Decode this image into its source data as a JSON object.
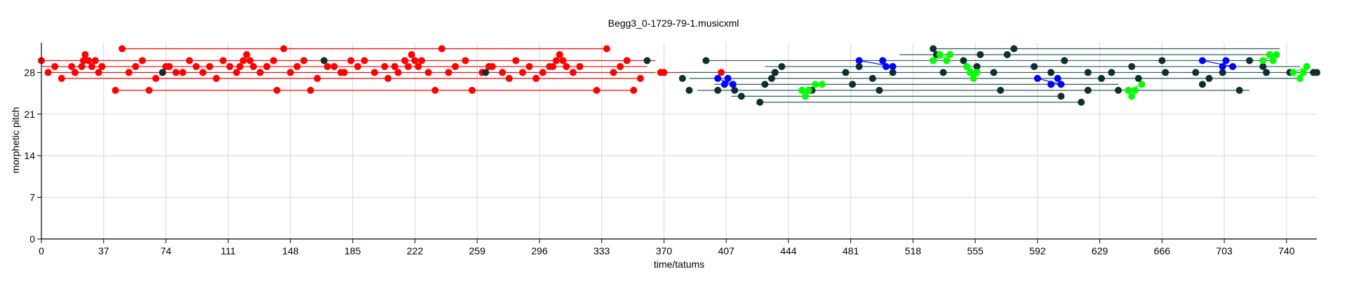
{
  "chart_data": {
    "type": "scatter",
    "title": "Begg3_0-1729-79-1.musicxml",
    "xlabel": "time/tatums",
    "ylabel": "morphetic pitch",
    "xlim": [
      0,
      758
    ],
    "ylim": [
      0,
      33
    ],
    "xticks": [
      0,
      37,
      74,
      111,
      148,
      185,
      222,
      259,
      296,
      333,
      370,
      407,
      444,
      481,
      518,
      555,
      592,
      629,
      666,
      703,
      740
    ],
    "yticks": [
      0,
      7,
      14,
      21,
      28
    ],
    "grid": true,
    "colors": {
      "red": "#ff0000",
      "dark": "#0f2f2f",
      "blue": "#0000ff",
      "green": "#00ff00",
      "line_dark": "#2e5a5a"
    },
    "red_lines": [
      {
        "x1": 48,
        "x2": 336,
        "y": 32
      },
      {
        "x1": 0,
        "x2": 365,
        "y": 30
      },
      {
        "x1": 0,
        "x2": 360,
        "y": 29
      },
      {
        "x1": 5,
        "x2": 365,
        "y": 28
      },
      {
        "x1": 370,
        "x2": 436,
        "y": 28
      },
      {
        "x1": 12,
        "x2": 356,
        "y": 27
      },
      {
        "x1": 44,
        "x2": 354,
        "y": 25
      }
    ],
    "dark_lines": [
      {
        "x1": 530,
        "x2": 736,
        "y": 32
      },
      {
        "x1": 510,
        "x2": 732,
        "y": 31
      },
      {
        "x1": 395,
        "x2": 730,
        "y": 30
      },
      {
        "x1": 430,
        "x2": 748,
        "y": 29
      },
      {
        "x1": 380,
        "x2": 758,
        "y": 28
      },
      {
        "x1": 385,
        "x2": 746,
        "y": 27
      },
      {
        "x1": 400,
        "x2": 640,
        "y": 26
      },
      {
        "x1": 390,
        "x2": 718,
        "y": 25
      },
      {
        "x1": 410,
        "x2": 606,
        "y": 24
      },
      {
        "x1": 427,
        "x2": 618,
        "y": 23
      }
    ],
    "series": [
      {
        "color": "red",
        "points": [
          [
            0,
            30
          ],
          [
            4,
            28
          ],
          [
            8,
            29
          ],
          [
            12,
            27
          ],
          [
            18,
            29
          ],
          [
            20,
            28
          ],
          [
            24,
            29
          ],
          [
            25,
            30
          ],
          [
            26,
            31
          ],
          [
            28,
            30
          ],
          [
            30,
            29
          ],
          [
            32,
            30
          ],
          [
            34,
            28
          ],
          [
            36,
            29
          ],
          [
            44,
            25
          ],
          [
            48,
            32
          ],
          [
            52,
            28
          ],
          [
            56,
            29
          ],
          [
            60,
            30
          ],
          [
            64,
            25
          ],
          [
            68,
            27
          ],
          [
            72,
            28
          ],
          [
            74,
            29
          ],
          [
            76,
            29
          ],
          [
            80,
            28
          ],
          [
            84,
            28
          ],
          [
            88,
            30
          ],
          [
            92,
            29
          ],
          [
            96,
            28
          ],
          [
            100,
            29
          ],
          [
            104,
            27
          ],
          [
            108,
            30
          ],
          [
            112,
            29
          ],
          [
            116,
            28
          ],
          [
            118,
            29
          ],
          [
            120,
            30
          ],
          [
            122,
            31
          ],
          [
            124,
            30
          ],
          [
            126,
            29
          ],
          [
            130,
            28
          ],
          [
            134,
            29
          ],
          [
            138,
            30
          ],
          [
            140,
            25
          ],
          [
            144,
            32
          ],
          [
            148,
            28
          ],
          [
            152,
            29
          ],
          [
            156,
            30
          ],
          [
            160,
            25
          ],
          [
            164,
            27
          ],
          [
            170,
            29
          ],
          [
            174,
            29
          ],
          [
            178,
            28
          ],
          [
            180,
            28
          ],
          [
            184,
            30
          ],
          [
            188,
            29
          ],
          [
            192,
            30
          ],
          [
            198,
            28
          ],
          [
            204,
            29
          ],
          [
            206,
            27
          ],
          [
            210,
            29
          ],
          [
            212,
            28
          ],
          [
            216,
            30
          ],
          [
            218,
            29
          ],
          [
            220,
            31
          ],
          [
            222,
            30
          ],
          [
            224,
            29
          ],
          [
            226,
            30
          ],
          [
            230,
            28
          ],
          [
            234,
            25
          ],
          [
            238,
            32
          ],
          [
            242,
            28
          ],
          [
            246,
            29
          ],
          [
            252,
            30
          ],
          [
            256,
            25
          ],
          [
            262,
            28
          ],
          [
            266,
            29
          ],
          [
            268,
            29
          ],
          [
            274,
            28
          ],
          [
            278,
            27
          ],
          [
            282,
            30
          ],
          [
            286,
            28
          ],
          [
            290,
            29
          ],
          [
            294,
            27
          ],
          [
            298,
            28
          ],
          [
            302,
            29
          ],
          [
            304,
            29
          ],
          [
            306,
            30
          ],
          [
            308,
            31
          ],
          [
            310,
            30
          ],
          [
            312,
            29
          ],
          [
            316,
            28
          ],
          [
            320,
            29
          ],
          [
            336,
            32
          ],
          [
            330,
            25
          ],
          [
            340,
            28
          ],
          [
            344,
            29
          ],
          [
            348,
            30
          ],
          [
            352,
            25
          ],
          [
            356,
            27
          ],
          [
            368,
            28
          ],
          [
            370,
            28
          ],
          [
            404,
            28
          ],
          [
            436,
            28
          ]
        ]
      },
      {
        "color": "dark",
        "points": [
          [
            72,
            28
          ],
          [
            168,
            30
          ],
          [
            264,
            28
          ],
          [
            360,
            30
          ],
          [
            381,
            27
          ],
          [
            385,
            25
          ],
          [
            395,
            30
          ],
          [
            402,
            25
          ],
          [
            412,
            25
          ],
          [
            416,
            24
          ],
          [
            427,
            23
          ],
          [
            430,
            26
          ],
          [
            434,
            27
          ],
          [
            436,
            28
          ],
          [
            440,
            29
          ],
          [
            456,
            25
          ],
          [
            458,
            25
          ],
          [
            478,
            28
          ],
          [
            482,
            26
          ],
          [
            486,
            29
          ],
          [
            494,
            27
          ],
          [
            498,
            25
          ],
          [
            506,
            28
          ],
          [
            530,
            32
          ],
          [
            532,
            31
          ],
          [
            536,
            28
          ],
          [
            548,
            30
          ],
          [
            556,
            29
          ],
          [
            558,
            31
          ],
          [
            566,
            28
          ],
          [
            570,
            25
          ],
          [
            574,
            31
          ],
          [
            578,
            32
          ],
          [
            590,
            29
          ],
          [
            600,
            28
          ],
          [
            608,
            30
          ],
          [
            622,
            28
          ],
          [
            630,
            27
          ],
          [
            636,
            28
          ],
          [
            640,
            25
          ],
          [
            648,
            29
          ],
          [
            652,
            27
          ],
          [
            666,
            30
          ],
          [
            668,
            28
          ],
          [
            686,
            28
          ],
          [
            690,
            26
          ],
          [
            694,
            27
          ],
          [
            702,
            28
          ],
          [
            712,
            25
          ],
          [
            718,
            30
          ],
          [
            726,
            29
          ],
          [
            728,
            28
          ],
          [
            742,
            28
          ],
          [
            756,
            28
          ],
          [
            758,
            28
          ],
          [
            600,
            26
          ],
          [
            606,
            24
          ],
          [
            618,
            23
          ],
          [
            622,
            25
          ]
        ]
      },
      {
        "color": "blue",
        "points": [
          [
            402,
            27
          ],
          [
            406,
            26
          ],
          [
            408,
            27
          ],
          [
            411,
            26
          ],
          [
            486,
            30
          ],
          [
            500,
            30
          ],
          [
            502,
            29
          ],
          [
            506,
            29
          ],
          [
            592,
            27
          ],
          [
            600,
            26
          ],
          [
            604,
            27
          ],
          [
            606,
            26
          ],
          [
            690,
            30
          ],
          [
            702,
            29
          ],
          [
            704,
            30
          ],
          [
            708,
            29
          ]
        ]
      },
      {
        "color": "green",
        "points": [
          [
            452,
            25
          ],
          [
            454,
            24
          ],
          [
            456,
            25
          ],
          [
            460,
            26
          ],
          [
            464,
            26
          ],
          [
            530,
            30
          ],
          [
            534,
            31
          ],
          [
            538,
            30
          ],
          [
            540,
            31
          ],
          [
            550,
            29
          ],
          [
            552,
            28
          ],
          [
            554,
            27
          ],
          [
            556,
            28
          ],
          [
            646,
            25
          ],
          [
            648,
            24
          ],
          [
            650,
            25
          ],
          [
            654,
            26
          ],
          [
            726,
            30
          ],
          [
            730,
            31
          ],
          [
            732,
            30
          ],
          [
            734,
            31
          ],
          [
            744,
            28
          ],
          [
            748,
            27
          ],
          [
            750,
            28
          ],
          [
            752,
            29
          ]
        ]
      }
    ],
    "connectors": [
      {
        "color": "blue",
        "from": [
          402,
          27
        ],
        "to": [
          411,
          26
        ]
      },
      {
        "color": "blue",
        "from": [
          486,
          30
        ],
        "to": [
          506,
          29
        ]
      },
      {
        "color": "blue",
        "from": [
          592,
          27
        ],
        "to": [
          606,
          26
        ]
      },
      {
        "color": "blue",
        "from": [
          690,
          30
        ],
        "to": [
          708,
          29
        ]
      },
      {
        "color": "green",
        "from": [
          452,
          25
        ],
        "to": [
          464,
          26
        ]
      },
      {
        "color": "green",
        "from": [
          530,
          30
        ],
        "to": [
          540,
          31
        ]
      },
      {
        "color": "green",
        "from": [
          550,
          29
        ],
        "to": [
          556,
          28
        ]
      },
      {
        "color": "green",
        "from": [
          646,
          25
        ],
        "to": [
          654,
          26
        ]
      },
      {
        "color": "green",
        "from": [
          726,
          30
        ],
        "to": [
          734,
          31
        ]
      },
      {
        "color": "green",
        "from": [
          744,
          28
        ],
        "to": [
          752,
          29
        ]
      }
    ]
  }
}
